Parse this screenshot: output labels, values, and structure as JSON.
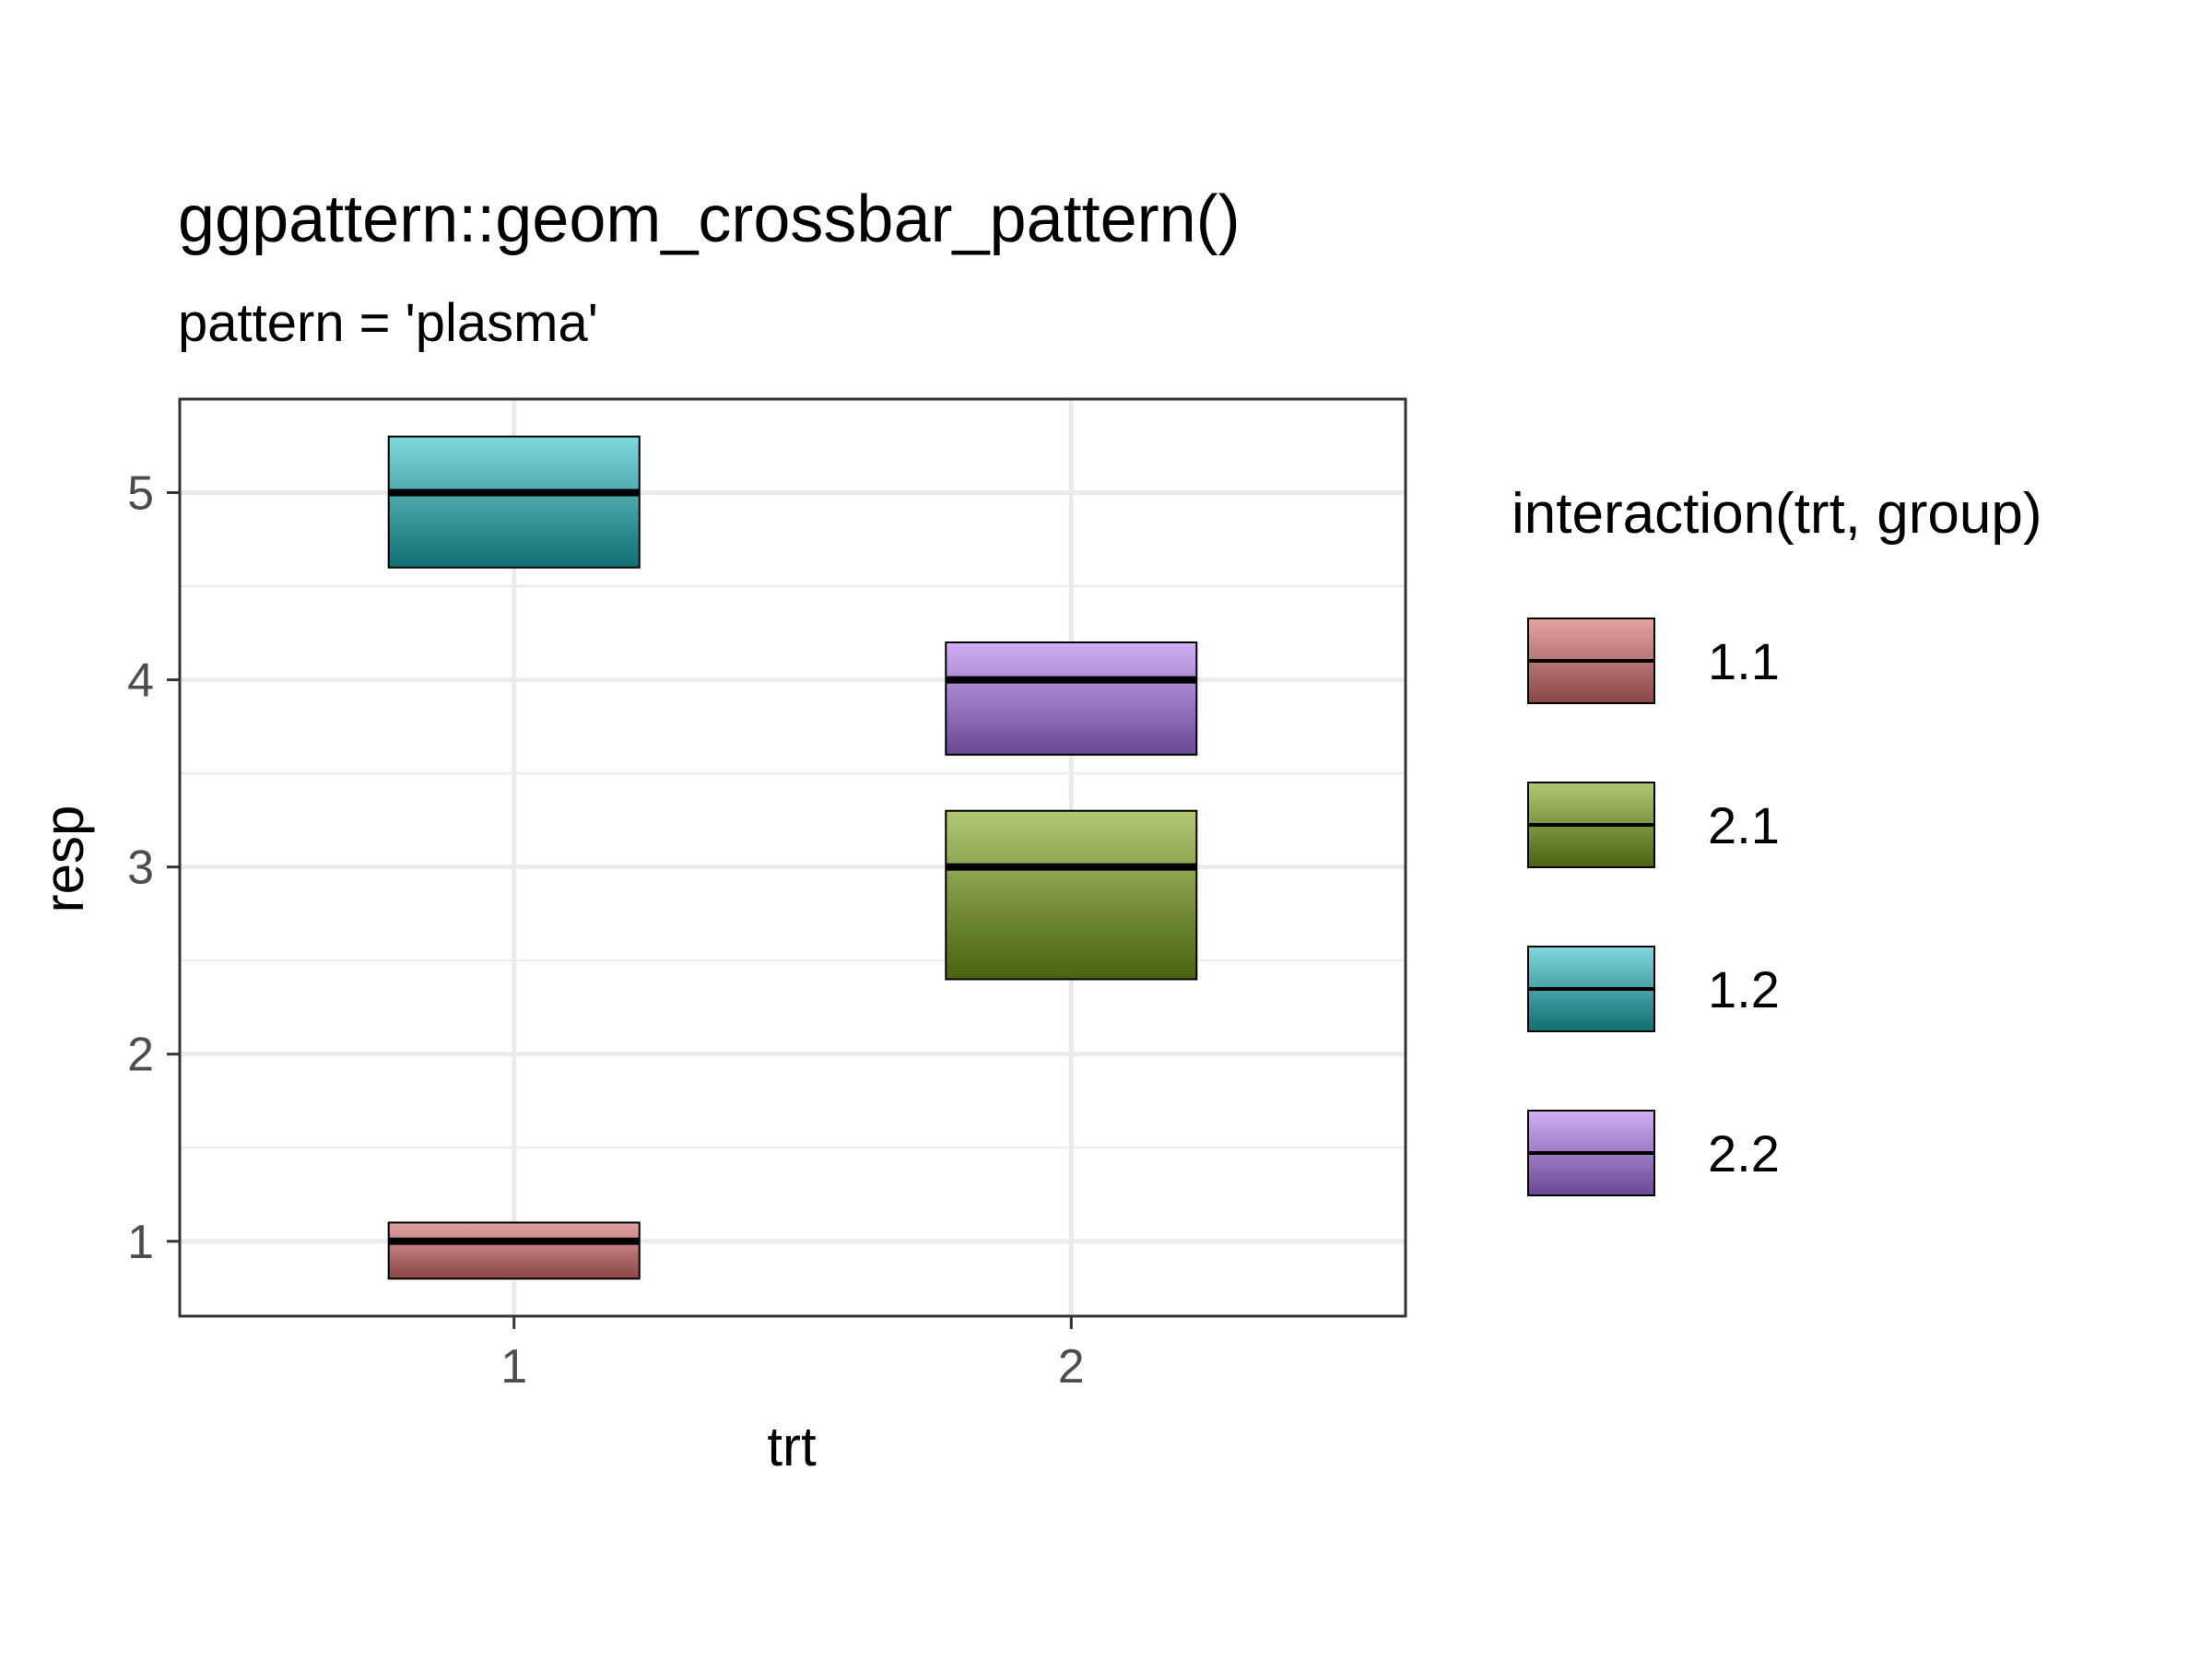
{
  "chart_data": {
    "type": "crossbar",
    "title": "ggpattern::geom_crossbar_pattern()",
    "subtitle": "pattern = 'plasma'",
    "xlabel": "trt",
    "ylabel": "resp",
    "x_categories": [
      "1",
      "2"
    ],
    "xlim": [
      0.4,
      2.6
    ],
    "ylim": [
      0.6,
      5.5
    ],
    "y_ticks": [
      1,
      2,
      3,
      4,
      5
    ],
    "grid": true,
    "legend": {
      "title": "interaction(trt, group)",
      "placement": "right",
      "entries": [
        {
          "label": "1.1",
          "color_light": "#e4a3a3",
          "color_dark": "#8a4646"
        },
        {
          "label": "2.1",
          "color_light": "#b0c870",
          "color_dark": "#4a6310"
        },
        {
          "label": "1.2",
          "color_light": "#7fd8dc",
          "color_dark": "#0f6e74"
        },
        {
          "label": "2.2",
          "color_light": "#d2aef5",
          "color_dark": "#6a4895"
        }
      ]
    },
    "series": [
      {
        "key": "1.1",
        "x": 1,
        "y": 1,
        "ymin": 0.8,
        "ymax": 1.1
      },
      {
        "key": "2.1",
        "x": 2,
        "y": 3,
        "ymin": 2.4,
        "ymax": 3.3
      },
      {
        "key": "1.2",
        "x": 1,
        "y": 5,
        "ymin": 4.6,
        "ymax": 5.3
      },
      {
        "key": "2.2",
        "x": 2,
        "y": 4,
        "ymin": 3.6,
        "ymax": 4.2
      }
    ]
  }
}
